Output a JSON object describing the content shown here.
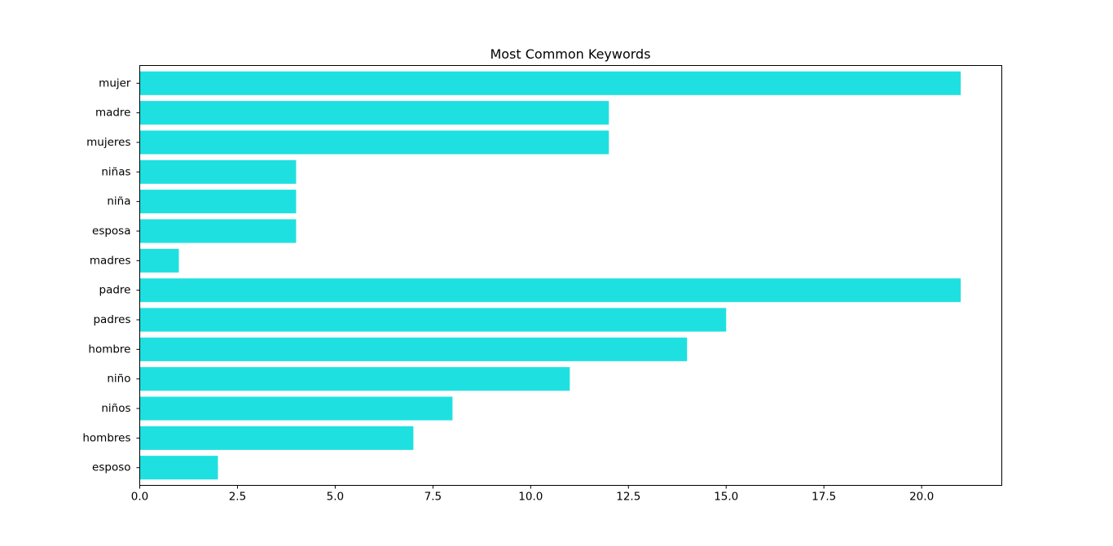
{
  "chart_data": {
    "type": "bar",
    "orientation": "horizontal",
    "title": "Most Common Keywords",
    "xlabel": "",
    "ylabel": "",
    "categories": [
      "mujer",
      "madre",
      "mujeres",
      "niñas",
      "niña",
      "esposa",
      "madres",
      "padre",
      "padres",
      "hombre",
      "niño",
      "niños",
      "hombres",
      "esposo"
    ],
    "values": [
      21,
      12,
      12,
      4,
      4,
      4,
      1,
      21,
      15,
      14,
      11,
      8,
      7,
      2
    ],
    "xlim": [
      0,
      22.05
    ],
    "x_ticks": [
      0.0,
      2.5,
      5.0,
      7.5,
      10.0,
      12.5,
      15.0,
      17.5,
      20.0
    ],
    "x_tick_labels": [
      "0.0",
      "2.5",
      "5.0",
      "7.5",
      "10.0",
      "12.5",
      "15.0",
      "17.5",
      "20.0"
    ],
    "bar_color": "#1fe0e0",
    "grid": false,
    "legend": "none"
  }
}
